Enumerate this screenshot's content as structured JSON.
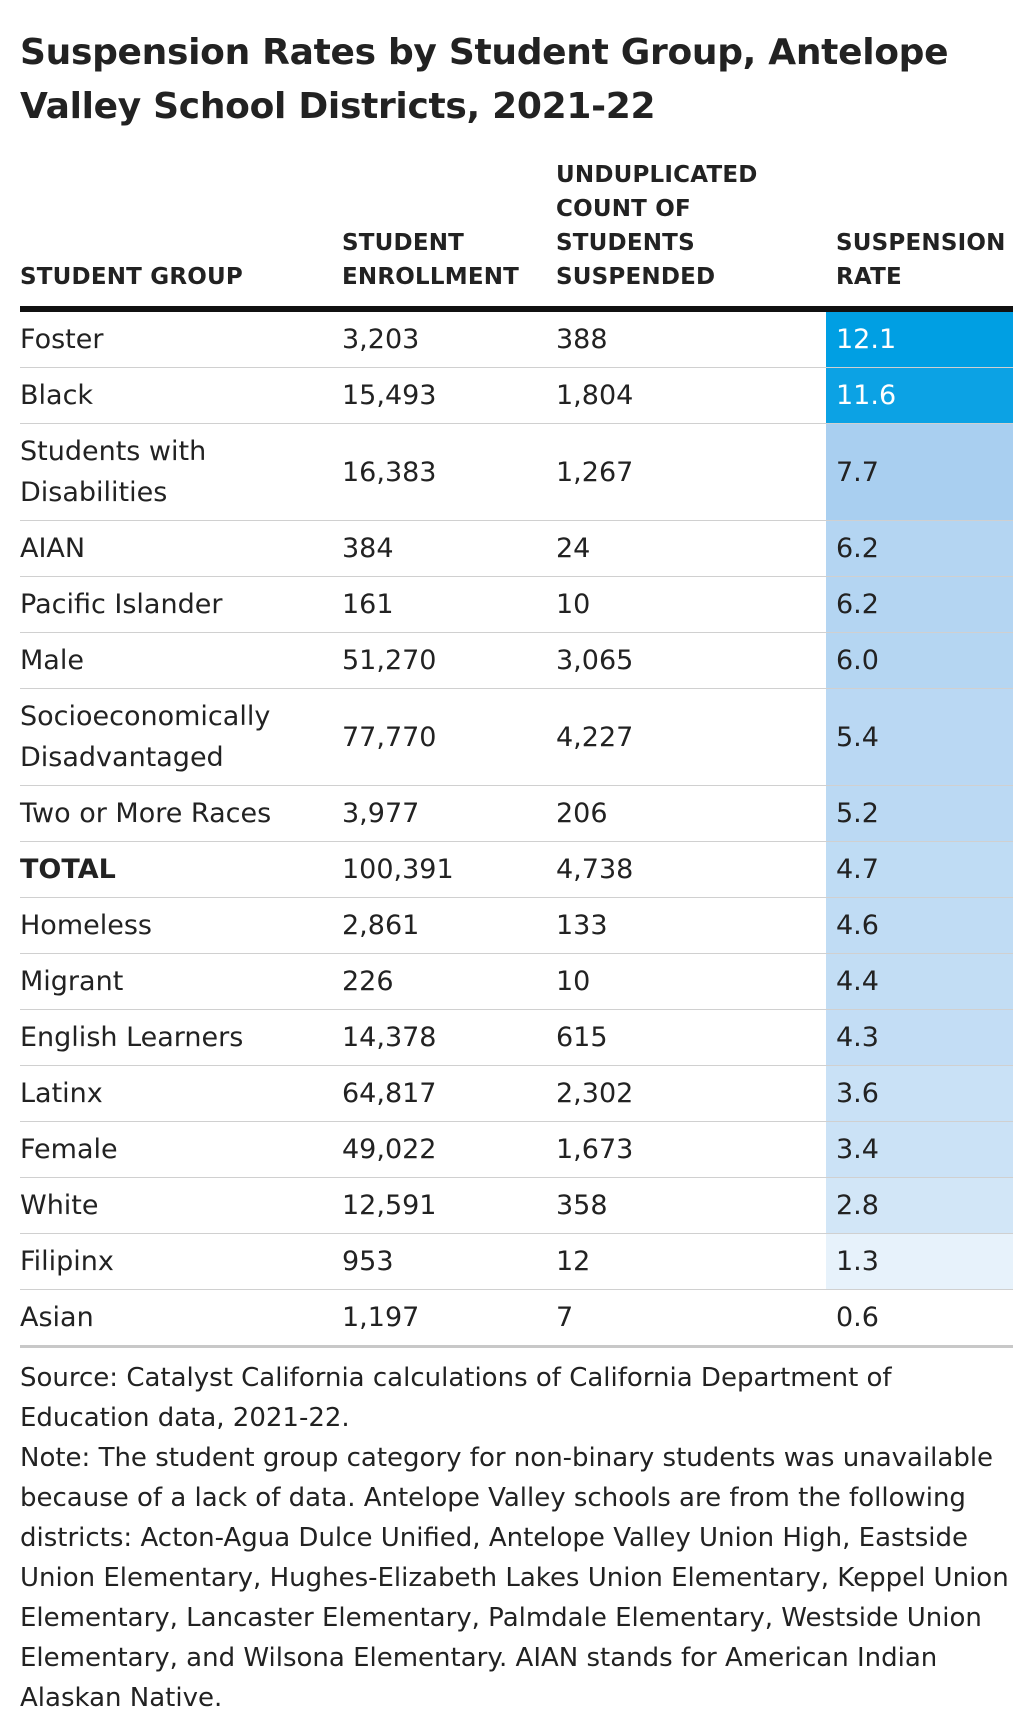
{
  "title": "Suspension Rates by Student Group, Antelope Valley School Districts, 2021-22",
  "columns": {
    "group": "STUDENT GROUP",
    "enrollment": "STUDENT ENROLLMENT",
    "suspended": "UNDUPLICATED COUNT OF STUDENTS SUSPENDED",
    "rate": "SUSPENSION RATE"
  },
  "rows": [
    {
      "group": "Foster",
      "enrollment": "3,203",
      "suspended": "388",
      "rate": "12.1"
    },
    {
      "group": "Black",
      "enrollment": "15,493",
      "suspended": "1,804",
      "rate": "11.6"
    },
    {
      "group": "Students with Disabilities",
      "enrollment": "16,383",
      "suspended": "1,267",
      "rate": "7.7"
    },
    {
      "group": "AIAN",
      "enrollment": "384",
      "suspended": "24",
      "rate": "6.2"
    },
    {
      "group": "Pacific Islander",
      "enrollment": "161",
      "suspended": "10",
      "rate": "6.2"
    },
    {
      "group": "Male",
      "enrollment": "51,270",
      "suspended": "3,065",
      "rate": "6.0"
    },
    {
      "group": "Socioeconomically Disadvantaged",
      "enrollment": "77,770",
      "suspended": "4,227",
      "rate": "5.4"
    },
    {
      "group": "Two or More Races",
      "enrollment": "3,977",
      "suspended": "206",
      "rate": "5.2"
    },
    {
      "group": "TOTAL",
      "enrollment": "100,391",
      "suspended": "4,738",
      "rate": "4.7",
      "bold": true
    },
    {
      "group": "Homeless",
      "enrollment": "2,861",
      "suspended": "133",
      "rate": "4.6"
    },
    {
      "group": "Migrant",
      "enrollment": "226",
      "suspended": "10",
      "rate": "4.4"
    },
    {
      "group": "English Learners",
      "enrollment": "14,378",
      "suspended": "615",
      "rate": "4.3"
    },
    {
      "group": "Latinx",
      "enrollment": "64,817",
      "suspended": "2,302",
      "rate": "3.6"
    },
    {
      "group": "Female",
      "enrollment": "49,022",
      "suspended": "1,673",
      "rate": "3.4"
    },
    {
      "group": "White",
      "enrollment": "12,591",
      "suspended": "358",
      "rate": "2.8"
    },
    {
      "group": "Filipinx",
      "enrollment": "953",
      "suspended": "12",
      "rate": "1.3"
    },
    {
      "group": "Asian",
      "enrollment": "1,197",
      "suspended": "7",
      "rate": "0.6"
    }
  ],
  "color_scale": {
    "low": "#ffffff",
    "mid": "#a9cff0",
    "high": "#009fe3",
    "rate_min": 0.6,
    "rate_mid": 7.7,
    "rate_max": 12.1
  },
  "source": "Source: Catalyst California calculations of California Department of Education data, 2021-22.",
  "note": "Note: The student group category for non-binary students was unavailable because of a lack of data. Antelope Valley schools are from the following districts: Acton-Agua Dulce Unified, Antelope Valley Union High, Eastside Union Elementary, Hughes-Elizabeth Lakes Union Elementary, Keppel Union Elementary, Lancaster Elementary, Palmdale Elementary, Westside Union Elementary, and Wilsona Elementary. AIAN stands for American Indian Alaskan Native.",
  "chart_data": {
    "type": "table",
    "title": "Suspension Rates by Student Group, Antelope Valley School Districts, 2021-22",
    "columns": [
      "STUDENT GROUP",
      "STUDENT ENROLLMENT",
      "UNDUPLICATED COUNT OF STUDENTS SUSPENDED",
      "SUSPENSION RATE"
    ],
    "categories": [
      "Foster",
      "Black",
      "Students with Disabilities",
      "AIAN",
      "Pacific Islander",
      "Male",
      "Socioeconomically Disadvantaged",
      "Two or More Races",
      "TOTAL",
      "Homeless",
      "Migrant",
      "English Learners",
      "Latinx",
      "Female",
      "White",
      "Filipinx",
      "Asian"
    ],
    "series": [
      {
        "name": "STUDENT ENROLLMENT",
        "values": [
          3203,
          15493,
          16383,
          384,
          161,
          51270,
          77770,
          3977,
          100391,
          2861,
          226,
          14378,
          64817,
          49022,
          12591,
          953,
          1197
        ]
      },
      {
        "name": "UNDUPLICATED COUNT OF STUDENTS SUSPENDED",
        "values": [
          388,
          1804,
          1267,
          24,
          10,
          3065,
          4227,
          206,
          4738,
          133,
          10,
          615,
          2302,
          1673,
          358,
          12,
          7
        ]
      },
      {
        "name": "SUSPENSION RATE",
        "values": [
          12.1,
          11.6,
          7.7,
          6.2,
          6.2,
          6.0,
          5.4,
          5.2,
          4.7,
          4.6,
          4.4,
          4.3,
          3.6,
          3.4,
          2.8,
          1.3,
          0.6
        ]
      }
    ]
  }
}
